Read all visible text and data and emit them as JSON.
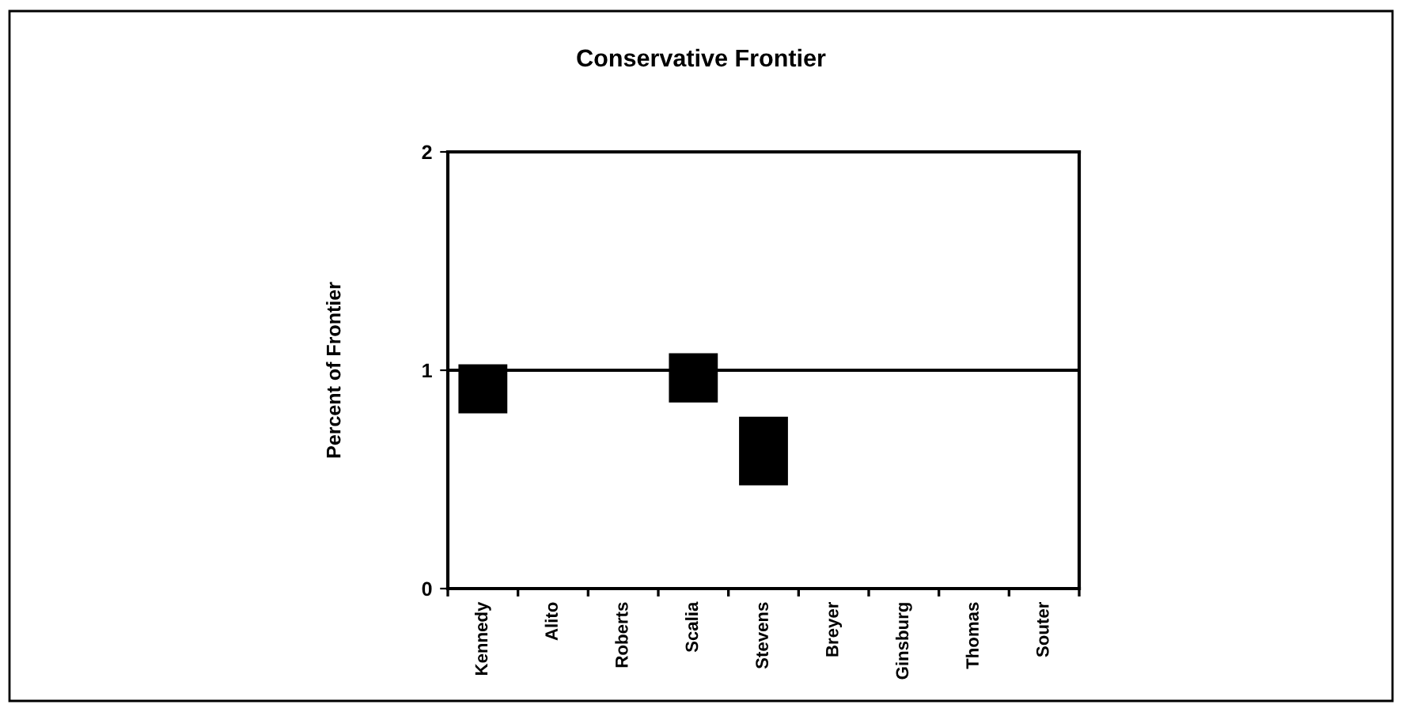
{
  "chart_data": {
    "type": "bar",
    "title": "Conservative Frontier",
    "ylabel": "Percent of Frontier",
    "categories": [
      "Kennedy",
      "Alito",
      "Roberts",
      "Scalia",
      "Stevens",
      "Breyer",
      "Ginsburg",
      "Thomas",
      "Souter"
    ],
    "base": [
      0.81,
      null,
      null,
      0.86,
      0.48,
      null,
      null,
      null,
      null
    ],
    "values": [
      0.21,
      null,
      null,
      0.21,
      0.3,
      null,
      null,
      null,
      null
    ],
    "color": "#000000",
    "ylim": [
      0,
      2
    ],
    "yticks": [
      0,
      1,
      2
    ],
    "ref_lines": [
      {
        "axis": "y",
        "value": 1,
        "color": "#000000",
        "line_style": "solid"
      }
    ],
    "grid": false,
    "legend": false
  }
}
